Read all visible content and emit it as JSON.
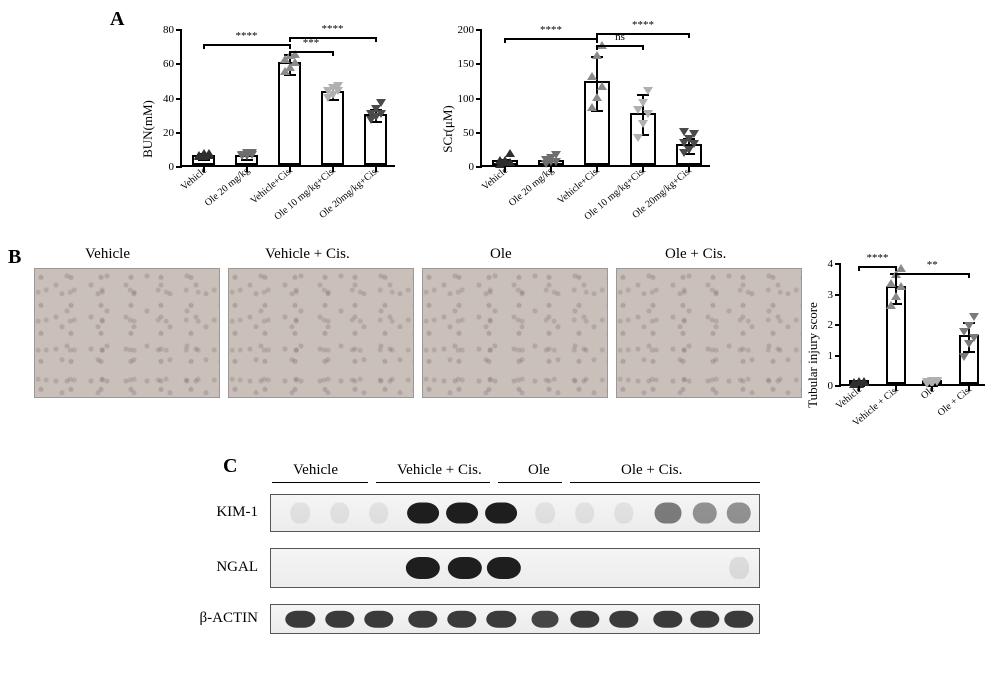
{
  "panels": {
    "a": "A",
    "b": "B",
    "c": "C"
  },
  "charts": {
    "bun": {
      "type": "bar-scatter",
      "y_title": "BUN(mM)",
      "ylim": [
        0,
        80
      ],
      "ytick_step": 20,
      "bar_border_color": "#000000",
      "bar_fill_color": "#ffffff",
      "groups": [
        {
          "label": "Vehicle",
          "mean": 6,
          "err": 2,
          "points": [
            5,
            5,
            6,
            6,
            7,
            7
          ],
          "marker": "tri-up",
          "marker_color": "#2e2e2e"
        },
        {
          "label": "Ole 20 mg/kg",
          "mean": 6,
          "err": 2,
          "points": [
            5,
            5,
            6,
            6,
            7,
            7
          ],
          "marker": "tri-down",
          "marker_color": "#6e6e6e"
        },
        {
          "label": "Vehicle+Cis.",
          "mean": 60,
          "err": 6,
          "points": [
            55,
            57,
            60,
            62,
            64,
            65
          ],
          "marker": "tri-up",
          "marker_color": "#8a8a8a"
        },
        {
          "label": "Ole 10 mg/kg+Cis.",
          "mean": 43,
          "err": 4,
          "points": [
            39,
            41,
            43,
            43,
            45,
            46
          ],
          "marker": "tri-down",
          "marker_color": "#b0b0b0"
        },
        {
          "label": "Ole 20mg/kg+Cis.",
          "mean": 30,
          "err": 4,
          "points": [
            26,
            28,
            30,
            30,
            33,
            36
          ],
          "marker": "tri-down",
          "marker_color": "#4a4a4a"
        }
      ],
      "sig": [
        {
          "from": 0,
          "to": 2,
          "label": "****",
          "y": 72
        },
        {
          "from": 2,
          "to": 3,
          "label": "***",
          "y": 68
        },
        {
          "from": 2,
          "to": 4,
          "label": "****",
          "y": 76
        }
      ]
    },
    "scr": {
      "type": "bar-scatter",
      "y_title": "SCr(μM)",
      "ylim": [
        0,
        200
      ],
      "ytick_step": 50,
      "bar_border_color": "#000000",
      "bar_fill_color": "#ffffff",
      "groups": [
        {
          "label": "Vehicle",
          "mean": 7,
          "err": 5,
          "points": [
            2,
            5,
            5,
            7,
            7,
            18
          ],
          "marker": "tri-up",
          "marker_color": "#2e2e2e"
        },
        {
          "label": "Ole 20 mg/kg",
          "mean": 7,
          "err": 5,
          "points": [
            2,
            5,
            5,
            7,
            10,
            15
          ],
          "marker": "tri-down",
          "marker_color": "#6e6e6e"
        },
        {
          "label": "Vehicle+Cis.",
          "mean": 122,
          "err": 40,
          "points": [
            85,
            100,
            115,
            130,
            160,
            175
          ],
          "marker": "tri-up",
          "marker_color": "#8a8a8a"
        },
        {
          "label": "Ole 10 mg/kg+Cis.",
          "mean": 76,
          "err": 30,
          "points": [
            40,
            60,
            75,
            80,
            90,
            108
          ],
          "marker": "tri-down",
          "marker_color": "#b0b0b0"
        },
        {
          "label": "Ole 20mg/kg+Cis.",
          "mean": 31,
          "err": 12,
          "points": [
            18,
            22,
            30,
            32,
            38,
            45,
            48
          ],
          "marker": "tri-down",
          "marker_color": "#4a4a4a"
        }
      ],
      "sig": [
        {
          "from": 0,
          "to": 2,
          "label": "****",
          "y": 188
        },
        {
          "from": 2,
          "to": 3,
          "label": "ns",
          "y": 178
        },
        {
          "from": 2,
          "to": 4,
          "label": "****",
          "y": 195
        }
      ]
    },
    "tubular": {
      "type": "bar-scatter",
      "y_title": "Tubular injury score",
      "ylim": [
        0,
        4
      ],
      "ytick_step": 1,
      "bar_border_color": "#000000",
      "bar_fill_color": "#ffffff",
      "groups": [
        {
          "label": "Vehicle",
          "mean": 0.05,
          "err": 0.05,
          "points": [
            0,
            0,
            0.05,
            0.05,
            0.1,
            0.1
          ],
          "marker": "tri-up",
          "marker_color": "#2e2e2e"
        },
        {
          "label": "Vehicle + Cis.",
          "mean": 3.2,
          "err": 0.5,
          "points": [
            2.6,
            2.9,
            3.2,
            3.3,
            3.6,
            3.8
          ],
          "marker": "tri-up",
          "marker_color": "#8a8a8a"
        },
        {
          "label": "Ole",
          "mean": 0.05,
          "err": 0.05,
          "points": [
            0,
            0,
            0.05,
            0.05,
            0.1,
            0.1
          ],
          "marker": "tri-down",
          "marker_color": "#b0b0b0"
        },
        {
          "label": "Ole + Cis.",
          "mean": 1.6,
          "err": 0.5,
          "points": [
            0.9,
            1.3,
            1.5,
            1.7,
            1.9,
            2.2
          ],
          "marker": "tri-down",
          "marker_color": "#7a7a7a"
        }
      ],
      "sig": [
        {
          "from": 0,
          "to": 1,
          "label": "****",
          "y": 3.95
        },
        {
          "from": 1,
          "to": 3,
          "label": "**",
          "y": 3.7
        }
      ]
    }
  },
  "panel_b": {
    "titles": [
      "Vehicle",
      "Vehicle + Cis.",
      "Ole",
      "Ole + Cis."
    ],
    "image_bg_color": "#c9c0b9",
    "nuclei_color": "#6b4a63"
  },
  "panel_c": {
    "groups": [
      "Vehicle",
      "Vehicle + Cis.",
      "Ole",
      "Ole + Cis."
    ],
    "rows": [
      {
        "label": "KIM-1",
        "h": 38,
        "bands": [
          {
            "x": 0.06,
            "w": 0.04,
            "i": 0.08
          },
          {
            "x": 0.14,
            "w": 0.04,
            "i": 0.08
          },
          {
            "x": 0.22,
            "w": 0.04,
            "i": 0.08
          },
          {
            "x": 0.31,
            "w": 0.065,
            "i": 0.98
          },
          {
            "x": 0.39,
            "w": 0.065,
            "i": 0.98
          },
          {
            "x": 0.47,
            "w": 0.065,
            "i": 0.98
          },
          {
            "x": 0.56,
            "w": 0.04,
            "i": 0.08
          },
          {
            "x": 0.64,
            "w": 0.04,
            "i": 0.08
          },
          {
            "x": 0.72,
            "w": 0.04,
            "i": 0.08
          },
          {
            "x": 0.81,
            "w": 0.055,
            "i": 0.55
          },
          {
            "x": 0.885,
            "w": 0.05,
            "i": 0.45
          },
          {
            "x": 0.955,
            "w": 0.05,
            "i": 0.45
          }
        ]
      },
      {
        "label": "NGAL",
        "h": 40,
        "bands": [
          {
            "x": 0.31,
            "w": 0.07,
            "i": 0.98
          },
          {
            "x": 0.395,
            "w": 0.07,
            "i": 0.98
          },
          {
            "x": 0.475,
            "w": 0.07,
            "i": 0.98
          },
          {
            "x": 0.955,
            "w": 0.04,
            "i": 0.1
          }
        ]
      },
      {
        "label": "β-ACTIN",
        "h": 30,
        "bands": [
          {
            "x": 0.06,
            "w": 0.06,
            "i": 0.85
          },
          {
            "x": 0.14,
            "w": 0.06,
            "i": 0.85
          },
          {
            "x": 0.22,
            "w": 0.06,
            "i": 0.85
          },
          {
            "x": 0.31,
            "w": 0.06,
            "i": 0.85
          },
          {
            "x": 0.39,
            "w": 0.06,
            "i": 0.85
          },
          {
            "x": 0.47,
            "w": 0.06,
            "i": 0.85
          },
          {
            "x": 0.56,
            "w": 0.055,
            "i": 0.8
          },
          {
            "x": 0.64,
            "w": 0.06,
            "i": 0.85
          },
          {
            "x": 0.72,
            "w": 0.06,
            "i": 0.85
          },
          {
            "x": 0.81,
            "w": 0.06,
            "i": 0.85
          },
          {
            "x": 0.885,
            "w": 0.06,
            "i": 0.85
          },
          {
            "x": 0.955,
            "w": 0.06,
            "i": 0.85
          }
        ]
      }
    ],
    "band_color": "#1a1a1a"
  }
}
